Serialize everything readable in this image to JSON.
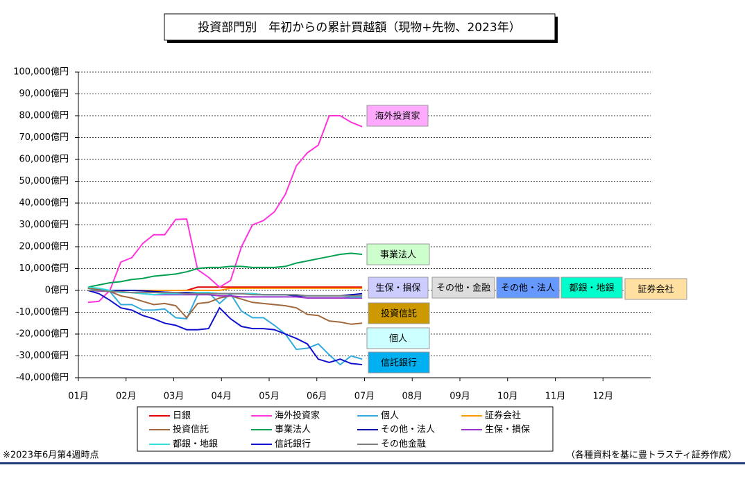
{
  "chart_data": {
    "type": "line",
    "title": "投資部門別　年初からの累計買越額（現物+先物、2023年）",
    "x": [
      0.2,
      0.43,
      0.66,
      0.89,
      1.12,
      1.35,
      1.58,
      1.81,
      2.04,
      2.27,
      2.5,
      2.73,
      2.96,
      3.19,
      3.42,
      3.65,
      3.88,
      4.11,
      4.34,
      4.57,
      4.8,
      5.03,
      5.26,
      5.49,
      5.72,
      5.95
    ],
    "xlim": [
      0,
      12
    ],
    "xticks": [
      {
        "value": 0,
        "label": "01月"
      },
      {
        "value": 1,
        "label": "02月"
      },
      {
        "value": 2,
        "label": "03月"
      },
      {
        "value": 3,
        "label": "04月"
      },
      {
        "value": 4,
        "label": "05月"
      },
      {
        "value": 5,
        "label": "06月"
      },
      {
        "value": 6,
        "label": "07月"
      },
      {
        "value": 7,
        "label": "08月"
      },
      {
        "value": 8,
        "label": "09月"
      },
      {
        "value": 9,
        "label": "10月"
      },
      {
        "value": 10,
        "label": "11月"
      },
      {
        "value": 11,
        "label": "12月"
      }
    ],
    "ylim": [
      -40000,
      100000
    ],
    "yticks": [
      {
        "value": -40000,
        "label": "-40,000億円"
      },
      {
        "value": -30000,
        "label": "-30,000億円"
      },
      {
        "value": -20000,
        "label": "-20,000億円"
      },
      {
        "value": -10000,
        "label": "-10,000億円"
      },
      {
        "value": 0,
        "label": "0億円"
      },
      {
        "value": 10000,
        "label": "10,000億円"
      },
      {
        "value": 20000,
        "label": "20,000億円"
      },
      {
        "value": 30000,
        "label": "30,000億円"
      },
      {
        "value": 40000,
        "label": "40,000億円"
      },
      {
        "value": 50000,
        "label": "50,000億円"
      },
      {
        "value": 60000,
        "label": "60,000億円"
      },
      {
        "value": 70000,
        "label": "70,000億円"
      },
      {
        "value": 80000,
        "label": "80,000億円"
      },
      {
        "value": 90000,
        "label": "90,000億円"
      },
      {
        "value": 100000,
        "label": "100,000億円"
      }
    ],
    "negative_tick_color": "#ff0000",
    "grid": true,
    "series": [
      {
        "name": "日銀",
        "color": "#e00000",
        "values": [
          0,
          0,
          0,
          0,
          0,
          0,
          0,
          0,
          0,
          0,
          1500,
          1500,
          1500,
          1500,
          1500,
          1500,
          1500,
          1500,
          1500,
          1500,
          1500,
          1500,
          1500,
          1500,
          1500,
          1500
        ]
      },
      {
        "name": "海外投資家",
        "color": "#ff33dd",
        "values": [
          -5500,
          -5000,
          0,
          13000,
          15000,
          21500,
          25500,
          25500,
          32500,
          32700,
          9500,
          6000,
          1500,
          4500,
          20000,
          30000,
          32000,
          36000,
          44000,
          57000,
          63000,
          66500,
          80000,
          80000,
          77000,
          75000
        ]
      },
      {
        "name": "個人",
        "color": "#33aadd",
        "values": [
          1000,
          0,
          -500,
          -6500,
          -6500,
          -9000,
          -9000,
          -8500,
          -12500,
          -13000,
          -2000,
          -1000,
          -6000,
          -1500,
          -9500,
          -12500,
          -12500,
          -16000,
          -20000,
          -27000,
          -26500,
          -24500,
          -29500,
          -34000,
          -30000,
          -31500
        ]
      },
      {
        "name": "証券会社",
        "color": "#ff9900",
        "values": [
          0,
          0,
          0,
          0,
          0,
          0,
          0,
          0,
          0,
          0,
          0,
          0,
          0,
          1000,
          1000,
          1000,
          1000,
          1000,
          1000,
          1000,
          1000,
          1000,
          1000,
          1000,
          1000,
          1000
        ]
      },
      {
        "name": "投資信託",
        "color": "#a0683c",
        "values": [
          1000,
          500,
          -500,
          -2500,
          -3500,
          -5000,
          -6500,
          -6000,
          -7000,
          -12500,
          -6000,
          -5500,
          -3500,
          -2500,
          -4000,
          -5500,
          -6000,
          -6500,
          -7000,
          -8000,
          -11000,
          -11500,
          -14000,
          -14500,
          -15500,
          -15000
        ]
      },
      {
        "name": "事業法人",
        "color": "#00a050",
        "values": [
          1500,
          2500,
          3500,
          4000,
          5000,
          5500,
          6500,
          7000,
          7500,
          8500,
          10000,
          10500,
          10500,
          11000,
          11000,
          10500,
          10500,
          10500,
          11000,
          12500,
          13500,
          14500,
          15500,
          16500,
          17000,
          16500
        ]
      },
      {
        "name": "その他・法人",
        "color": "#0000aa",
        "values": [
          0,
          0,
          0,
          0,
          0,
          -200,
          -500,
          -800,
          -1000,
          -1000,
          -1000,
          -1000,
          -1500,
          -1500,
          -1500,
          -1500,
          -2000,
          -2000,
          -2000,
          -2500,
          -2500,
          -2500,
          -2500,
          -2500,
          -2000,
          -1500
        ]
      },
      {
        "name": "生保・損保",
        "color": "#9933cc",
        "values": [
          0,
          -300,
          -500,
          -800,
          -1000,
          -1500,
          -2000,
          -2000,
          -2000,
          -2000,
          -2000,
          -2000,
          -2500,
          -2500,
          -3000,
          -3000,
          -3000,
          -3000,
          -3000,
          -3000,
          -3500,
          -3500,
          -3500,
          -3500,
          -3500,
          -3500
        ]
      },
      {
        "name": "都銀・地銀",
        "color": "#33dddd",
        "values": [
          1500,
          1000,
          0,
          -1000,
          -1000,
          -1500,
          -2000,
          -1500,
          -1500,
          -1500,
          -1000,
          -1000,
          -1500,
          -1500,
          -1500,
          -1500,
          -2000,
          -2000,
          -2000,
          -2000,
          -2500,
          -2500,
          -2500,
          -2500,
          -3000,
          -3000
        ]
      },
      {
        "name": "信託銀行",
        "color": "#1010d0",
        "values": [
          0,
          -1500,
          -4500,
          -8000,
          -9000,
          -11500,
          -13000,
          -15000,
          -16000,
          -18000,
          -18000,
          -17500,
          -8000,
          -13000,
          -16500,
          -17500,
          -17500,
          -18000,
          -20000,
          -22000,
          -24500,
          -31500,
          -33000,
          -31500,
          -33500,
          -34000
        ]
      },
      {
        "name": "その他金融",
        "color": "#808080",
        "values": [
          0,
          0,
          -500,
          -500,
          -1000,
          -1000,
          -1000,
          -1000,
          -1000,
          -1500,
          -1500,
          -1500,
          -1500,
          -1500,
          -1500,
          -2000,
          -2000,
          -2000,
          -2000,
          -2000,
          -2500,
          -2500,
          -2500,
          -2500,
          -2500,
          -2500
        ]
      }
    ],
    "annotations": [
      {
        "text": "海外投資家",
        "color": "#ffaaff"
      },
      {
        "text": "事業法人",
        "color": "#ccffcc"
      },
      {
        "text": "生保・損保",
        "color": "#ccccff"
      },
      {
        "text": "その他・金融",
        "color": "#dddddd"
      },
      {
        "text": "その他・法人",
        "color": "#6699ff"
      },
      {
        "text": "都銀・地銀",
        "color": "#00ffcc"
      },
      {
        "text": "証券会社",
        "color": "#ffe0a0"
      },
      {
        "text": "投資信託",
        "color": "#cc9900"
      },
      {
        "text": "個人",
        "color": "#ccffff"
      },
      {
        "text": "信託銀行",
        "color": "#00b0f0"
      }
    ],
    "footnote_left": "※2023年6月第4週時点",
    "footnote_right": "（各種資料を基に豊トラスティ証券作成）"
  }
}
